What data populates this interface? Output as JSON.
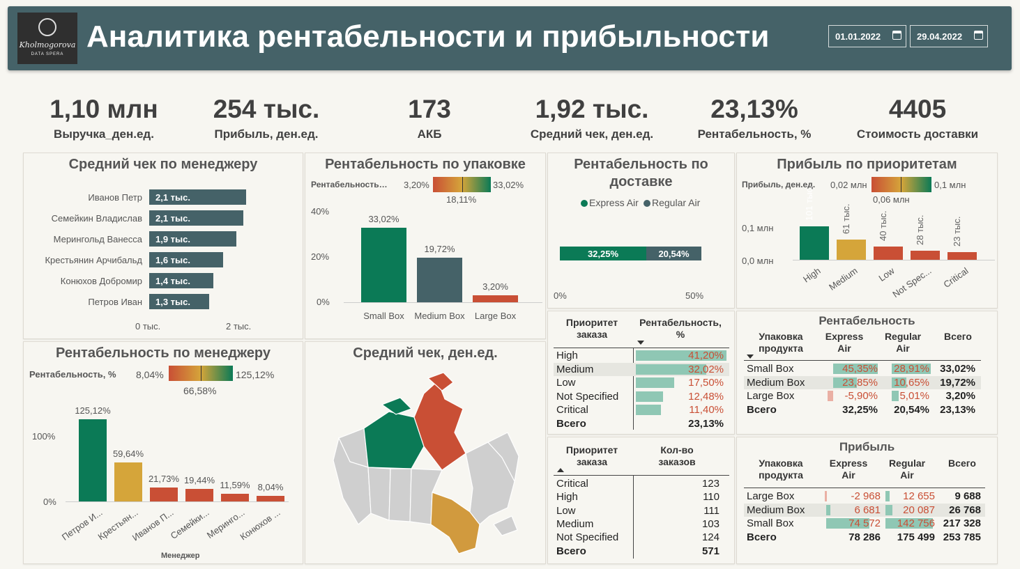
{
  "header": {
    "title": "Аналитика рентабельности и прибыльности",
    "date_from": "01.01.2022",
    "date_to": "29.04.2022",
    "logo_name": "Kholmogorova",
    "logo_sub": "DATA SPERA"
  },
  "kpis": [
    {
      "value": "1,10 млн",
      "label": "Выручка_ден.ед."
    },
    {
      "value": "254 тыс.",
      "label": "Прибыль, ден.ед."
    },
    {
      "value": "173",
      "label": "АКБ"
    },
    {
      "value": "1,92 тыс.",
      "label": "Средний чек, ден.ед."
    },
    {
      "value": "23,13%",
      "label": "Рентабельность, %"
    },
    {
      "value": "4405",
      "label": "Стоимость доставки"
    }
  ],
  "avg_check_by_manager": {
    "title": "Средний чек по менеджеру",
    "rows": [
      {
        "name": "Иванов Петр",
        "label": "2,1 тыс.",
        "value": 2.1
      },
      {
        "name": "Семейкин Владислав",
        "label": "2,1 тыс.",
        "value": 2.05
      },
      {
        "name": "Мерингольд Ванесса",
        "label": "1,9 тыс.",
        "value": 1.9
      },
      {
        "name": "Крестьянин Арчибальд",
        "label": "1,6 тыс.",
        "value": 1.6
      },
      {
        "name": "Конюхов Добромир",
        "label": "1,4 тыс.",
        "value": 1.4
      },
      {
        "name": "Петров Иван",
        "label": "1,3 тыс.",
        "value": 1.3
      }
    ],
    "x_ticks": [
      "0 тыс.",
      "2 тыс."
    ]
  },
  "profitability_by_package": {
    "title": "Рентабельность по упаковке",
    "legend_label": "Рентабельность…",
    "legend_min": "3,20%",
    "legend_max": "33,02%",
    "legend_mid": "18,11%",
    "y_ticks": [
      "40%",
      "20%",
      "0%"
    ],
    "bars": [
      {
        "name": "Small Box",
        "label": "33,02%",
        "value": 33.02,
        "color": "#0b7a56"
      },
      {
        "name": "Medium Box",
        "label": "19,72%",
        "value": 19.72,
        "color": "#456268"
      },
      {
        "name": "Large Box",
        "label": "3,20%",
        "value": 3.2,
        "color": "#c94f35"
      }
    ]
  },
  "profitability_by_delivery": {
    "title": "Рентабельность по доставке",
    "legend": [
      {
        "name": "Express Air",
        "color": "#0b7a56"
      },
      {
        "name": "Regular Air",
        "color": "#456268"
      }
    ],
    "segments": [
      {
        "label": "32,25%",
        "value": 32.25,
        "color": "#0b7a56"
      },
      {
        "label": "20,54%",
        "value": 20.54,
        "color": "#456268"
      }
    ],
    "x_ticks": [
      "0%",
      "50%"
    ]
  },
  "profit_by_priority": {
    "title": "Прибыль по приоритетам",
    "legend_label": "Прибыль, ден.ед.",
    "legend_min": "0,02 млн",
    "legend_max": "0,1 млн",
    "legend_mid": "0,06 млн",
    "y_ticks": [
      "0,1 млн",
      "0,0 млн"
    ],
    "bars": [
      {
        "name": "High",
        "label": "101 тыс.",
        "value": 101,
        "color": "#0b7a56"
      },
      {
        "name": "Medium",
        "label": "61 тыс.",
        "value": 61,
        "color": "#d5a53a"
      },
      {
        "name": "Low",
        "label": "40 тыс.",
        "value": 40,
        "color": "#c94f35"
      },
      {
        "name": "Not Spec...",
        "label": "28 тыс.",
        "value": 28,
        "color": "#c94f35"
      },
      {
        "name": "Critical",
        "label": "23 тыс.",
        "value": 23,
        "color": "#c94f35"
      }
    ]
  },
  "profitability_by_manager": {
    "title": "Рентабельность по менеджеру",
    "legend_label": "Рентабельность, %",
    "legend_min": "8,04%",
    "legend_max": "125,12%",
    "legend_mid": "66,58%",
    "y_ticks": [
      "100%",
      "0%"
    ],
    "x_axis_title": "Менеджер",
    "bars": [
      {
        "name": "Петров И...",
        "label": "125,12%",
        "value": 125.12,
        "color": "#0b7a56"
      },
      {
        "name": "Крестьян...",
        "label": "59,64%",
        "value": 59.64,
        "color": "#d5a53a"
      },
      {
        "name": "Иванов П...",
        "label": "21,73%",
        "value": 21.73,
        "color": "#c94f35"
      },
      {
        "name": "Семейки...",
        "label": "19,44%",
        "value": 19.44,
        "color": "#c94f35"
      },
      {
        "name": "Меринго...",
        "label": "11,59%",
        "value": 11.59,
        "color": "#c94f35"
      },
      {
        "name": "Конюхов ...",
        "label": "8,04%",
        "value": 8.04,
        "color": "#c94f35"
      }
    ]
  },
  "map": {
    "title": "Средний чек, ден.ед."
  },
  "priority_profitability_table": {
    "headers": [
      "Приоритет заказа",
      "Рентабельность, %"
    ],
    "rows": [
      {
        "name": "High",
        "label": "41,20%",
        "value": 41.2
      },
      {
        "name": "Medium",
        "label": "32,02%",
        "value": 32.02
      },
      {
        "name": "Low",
        "label": "17,50%",
        "value": 17.5
      },
      {
        "name": "Not Specified",
        "label": "12,48%",
        "value": 12.48
      },
      {
        "name": "Critical",
        "label": "11,40%",
        "value": 11.4
      }
    ],
    "total": {
      "name": "Всего",
      "label": "23,13%"
    }
  },
  "priority_orders_table": {
    "headers": [
      "Приоритет заказа",
      "Кол-во заказов"
    ],
    "rows": [
      {
        "name": "Critical",
        "value": "123"
      },
      {
        "name": "High",
        "value": "110"
      },
      {
        "name": "Low",
        "value": "111"
      },
      {
        "name": "Medium",
        "value": "103"
      },
      {
        "name": "Not Specified",
        "value": "124"
      }
    ],
    "total": {
      "name": "Всего",
      "value": "571"
    }
  },
  "profitability_matrix": {
    "title": "Рентабельность",
    "headers": [
      "Упаковка продукта",
      "Express Air",
      "Regular Air",
      "Всего"
    ],
    "rows": [
      {
        "name": "Small Box",
        "express": "45,35%",
        "express_v": 45.35,
        "regular": "28,91%",
        "regular_v": 28.91,
        "total": "33,02%"
      },
      {
        "name": "Medium Box",
        "express": "23,85%",
        "express_v": 23.85,
        "regular": "10,65%",
        "regular_v": 10.65,
        "total": "19,72%"
      },
      {
        "name": "Large Box",
        "express": "-5,90%",
        "express_v": -5.9,
        "regular": "5,01%",
        "regular_v": 5.01,
        "total": "3,20%"
      }
    ],
    "total": {
      "name": "Всего",
      "express": "32,25%",
      "regular": "20,54%",
      "total": "23,13%"
    }
  },
  "profit_matrix": {
    "title": "Прибыль",
    "headers": [
      "Упаковка продукта",
      "Express Air",
      "Regular Air",
      "Всего"
    ],
    "rows": [
      {
        "name": "Large Box",
        "express": "-2 968",
        "express_v": -2968,
        "regular": "12 655",
        "regular_v": 12655,
        "total": "9 688"
      },
      {
        "name": "Medium Box",
        "express": "6 681",
        "express_v": 6681,
        "regular": "20 087",
        "regular_v": 20087,
        "total": "26 768"
      },
      {
        "name": "Small Box",
        "express": "74 572",
        "express_v": 74572,
        "regular": "142 756",
        "regular_v": 142756,
        "total": "217 328"
      }
    ],
    "total": {
      "name": "Всего",
      "express": "78 286",
      "regular": "175 499",
      "total": "253 785"
    }
  }
}
